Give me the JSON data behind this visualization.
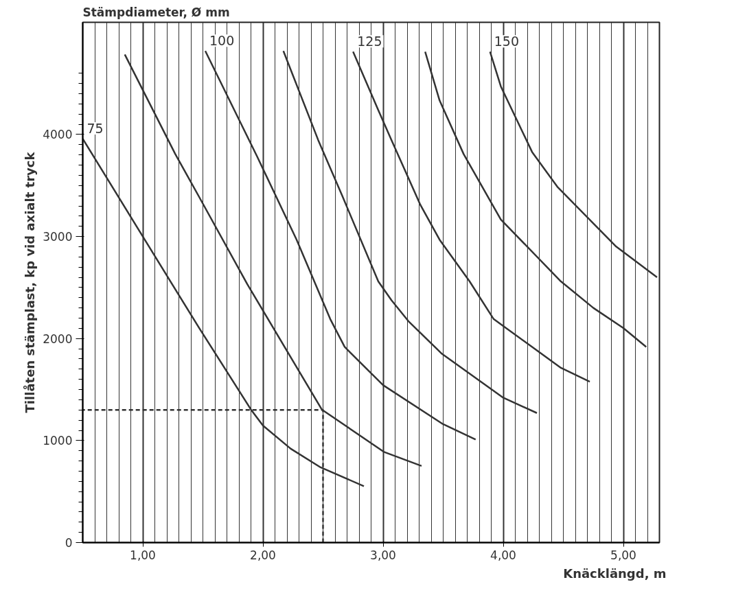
{
  "chart_data": {
    "type": "line",
    "title": "Stämpdiameter, Ø mm",
    "xlabel": "Knäcklängd, m",
    "ylabel": "Tillåten stämplast, kp vid axialt tryck",
    "xlim": [
      0.5,
      5.3
    ],
    "ylim": [
      0,
      5100
    ],
    "xticks": [
      {
        "value": 1,
        "label": "1,00"
      },
      {
        "value": 2,
        "label": "2,00"
      },
      {
        "value": 3,
        "label": "3,00"
      },
      {
        "value": 4,
        "label": "4,00"
      },
      {
        "value": 5,
        "label": "5,00"
      },
      {
        "value": 0.6,
        "label": null
      },
      {
        "value": 0.7,
        "label": null
      },
      {
        "value": 0.8,
        "label": null
      },
      {
        "value": 0.9,
        "label": null
      },
      {
        "value": 1.1,
        "label": null
      },
      {
        "value": 1.2,
        "label": null
      },
      {
        "value": 1.3,
        "label": null
      },
      {
        "value": 1.4,
        "label": null
      },
      {
        "value": 1.5,
        "label": null
      },
      {
        "value": 1.6,
        "label": null
      },
      {
        "value": 1.7,
        "label": null
      },
      {
        "value": 1.8,
        "label": null
      },
      {
        "value": 1.9,
        "label": null
      },
      {
        "value": 2.1,
        "label": null
      },
      {
        "value": 2.2,
        "label": null
      },
      {
        "value": 2.3,
        "label": null
      },
      {
        "value": 2.4,
        "label": null
      },
      {
        "value": 2.5,
        "label": null
      },
      {
        "value": 2.6,
        "label": null
      },
      {
        "value": 2.7,
        "label": null
      },
      {
        "value": 2.8,
        "label": null
      },
      {
        "value": 2.9,
        "label": null
      },
      {
        "value": 3.1,
        "label": null
      },
      {
        "value": 3.2,
        "label": null
      },
      {
        "value": 3.3,
        "label": null
      },
      {
        "value": 3.4,
        "label": null
      },
      {
        "value": 3.5,
        "label": null
      },
      {
        "value": 3.6,
        "label": null
      },
      {
        "value": 3.7,
        "label": null
      },
      {
        "value": 3.8,
        "label": null
      },
      {
        "value": 3.9,
        "label": null
      },
      {
        "value": 4.1,
        "label": null
      },
      {
        "value": 4.2,
        "label": null
      },
      {
        "value": 4.3,
        "label": null
      },
      {
        "value": 4.4,
        "label": null
      },
      {
        "value": 4.5,
        "label": null
      },
      {
        "value": 4.6,
        "label": null
      },
      {
        "value": 4.7,
        "label": null
      },
      {
        "value": 4.8,
        "label": null
      },
      {
        "value": 4.9,
        "label": null
      },
      {
        "value": 5.1,
        "label": null
      },
      {
        "value": 5.2,
        "label": null
      }
    ],
    "yticks": [
      0,
      1000,
      2000,
      3000,
      4000,
      {
        "value": 100,
        "label": null
      },
      {
        "value": 200,
        "label": null
      },
      {
        "value": 300,
        "label": null
      },
      {
        "value": 400,
        "label": null
      },
      {
        "value": 500,
        "label": null
      },
      {
        "value": 600,
        "label": null
      },
      {
        "value": 700,
        "label": null
      },
      {
        "value": 800,
        "label": null
      },
      {
        "value": 900,
        "label": null
      },
      {
        "value": 1100,
        "label": null
      },
      {
        "value": 1200,
        "label": null
      },
      {
        "value": 1300,
        "label": null
      },
      {
        "value": 1400,
        "label": null
      },
      {
        "value": 1500,
        "label": null
      },
      {
        "value": 1600,
        "label": null
      },
      {
        "value": 1700,
        "label": null
      },
      {
        "value": 1800,
        "label": null
      },
      {
        "value": 1900,
        "label": null
      },
      {
        "value": 2100,
        "label": null
      },
      {
        "value": 2200,
        "label": null
      },
      {
        "value": 2300,
        "label": null
      },
      {
        "value": 2400,
        "label": null
      },
      {
        "value": 2500,
        "label": null
      },
      {
        "value": 2600,
        "label": null
      },
      {
        "value": 2700,
        "label": null
      },
      {
        "value": 2800,
        "label": null
      },
      {
        "value": 2900,
        "label": null
      },
      {
        "value": 3100,
        "label": null
      },
      {
        "value": 3200,
        "label": null
      },
      {
        "value": 3300,
        "label": null
      },
      {
        "value": 3400,
        "label": null
      },
      {
        "value": 3500,
        "label": null
      },
      {
        "value": 3600,
        "label": null
      },
      {
        "value": 3700,
        "label": null
      },
      {
        "value": 3800,
        "label": null
      },
      {
        "value": 3900,
        "label": null
      },
      {
        "value": 4100,
        "label": null
      },
      {
        "value": 4200,
        "label": null
      },
      {
        "value": 4300,
        "label": null
      },
      {
        "value": 4400,
        "label": null
      },
      {
        "value": 4500,
        "label": null
      },
      {
        "value": 4600,
        "label": null
      }
    ],
    "grid": "x",
    "marker": "none",
    "line_style": "solid",
    "series": [
      {
        "name": "75",
        "color": "#333333",
        "x": [
          0.5,
          0.98,
          1.47,
          1.9,
          2.0,
          2.23,
          2.48,
          2.84
        ],
        "values": [
          3959,
          3038,
          2102,
          1304,
          1147,
          921,
          737,
          553
        ]
      },
      {
        "color": "#333333",
        "x": [
          0.85,
          1.27,
          1.47,
          1.87,
          2.49,
          3.01,
          3.32
        ],
        "values": [
          4785,
          3809,
          3386,
          2532,
          1304,
          887,
          751
        ]
      },
      {
        "name": "100",
        "color": "#333333",
        "x": [
          1.52,
          1.95,
          2.28,
          2.56,
          2.68,
          3.0,
          3.49,
          3.77
        ],
        "values": [
          4819,
          3788,
          2969,
          2191,
          1918,
          1543,
          1167,
          1010
        ]
      },
      {
        "color": "#333333",
        "x": [
          2.17,
          2.46,
          2.66,
          2.96,
          3.07,
          3.21,
          3.49,
          4.0,
          4.28
        ],
        "values": [
          4819,
          3945,
          3399,
          2560,
          2375,
          2171,
          1850,
          1420,
          1270
        ]
      },
      {
        "name": "125",
        "color": "#333333",
        "x": [
          2.75,
          2.96,
          3.07,
          3.31,
          3.47,
          3.72,
          3.92,
          4.0,
          4.48,
          4.72
        ],
        "values": [
          4812,
          4239,
          3945,
          3311,
          2969,
          2560,
          2191,
          2123,
          1713,
          1577
        ]
      },
      {
        "color": "#333333",
        "x": [
          3.35,
          3.47,
          3.67,
          3.98,
          4.48,
          4.75,
          5.0,
          5.19
        ],
        "values": [
          4812,
          4334,
          3809,
          3167,
          2560,
          2300,
          2102,
          1918
        ]
      },
      {
        "name": "150",
        "color": "#333333",
        "x": [
          3.89,
          3.98,
          4.24,
          4.45,
          4.94,
          5.28
        ],
        "values": [
          4812,
          4471,
          3829,
          3488,
          2901,
          2601
        ]
      },
      {
        "color": "#333333",
        "line_style": "dashed",
        "x": [
          2.5,
          2.5,
          0.5
        ],
        "values": [
          0,
          1300,
          1300
        ]
      }
    ]
  }
}
